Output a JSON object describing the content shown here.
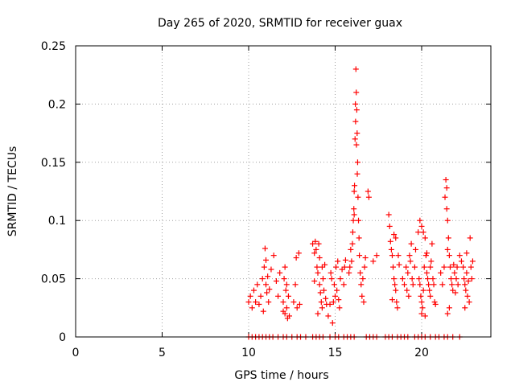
{
  "chart_data": {
    "type": "scatter",
    "title": "Day 265 of 2020, SRMTID for receiver guax",
    "xlabel": "GPS time / hours",
    "ylabel": "SRMTID / TECUs",
    "xlim": [
      0,
      24.0
    ],
    "ylim": [
      0,
      0.25
    ],
    "x_ticks": [
      0,
      5,
      10,
      15,
      20
    ],
    "y_ticks": [
      0,
      0.05,
      0.1,
      0.15,
      0.2,
      0.25
    ],
    "x_tick_labels": [
      "0",
      "5",
      "10",
      "15",
      "20"
    ],
    "y_tick_labels": [
      "0",
      "0.05",
      "0.1",
      "0.15",
      "0.2",
      "0.25"
    ],
    "grid": true,
    "marker": "+",
    "series": [
      {
        "name": "SRMTID",
        "color": "#ff0000",
        "points": [
          [
            10.0,
            0.03
          ],
          [
            10.1,
            0.035
          ],
          [
            10.2,
            0.025
          ],
          [
            10.3,
            0.04
          ],
          [
            10.4,
            0.03
          ],
          [
            10.5,
            0.045
          ],
          [
            10.6,
            0.028
          ],
          [
            10.7,
            0.035
          ],
          [
            10.8,
            0.05
          ],
          [
            10.9,
            0.06
          ],
          [
            10.95,
            0.076
          ],
          [
            11.0,
            0.045
          ],
          [
            11.05,
            0.038
          ],
          [
            11.1,
            0.052
          ],
          [
            11.15,
            0.03
          ],
          [
            11.0,
            0.066
          ],
          [
            10.85,
            0.022
          ],
          [
            11.2,
            0.041
          ],
          [
            11.3,
            0.058
          ],
          [
            11.45,
            0.07
          ],
          [
            11.6,
            0.048
          ],
          [
            11.7,
            0.035
          ],
          [
            11.8,
            0.055
          ],
          [
            12.0,
            0.03
          ],
          [
            12.05,
            0.05
          ],
          [
            12.1,
            0.02
          ],
          [
            12.15,
            0.04
          ],
          [
            12.2,
            0.025
          ],
          [
            12.25,
            0.016
          ],
          [
            12.3,
            0.035
          ],
          [
            12.35,
            0.018
          ],
          [
            12.1,
            0.06
          ],
          [
            12.2,
            0.045
          ],
          [
            12.0,
            0.022
          ],
          [
            12.6,
            0.03
          ],
          [
            12.7,
            0.045
          ],
          [
            12.75,
            0.068
          ],
          [
            12.8,
            0.025
          ],
          [
            12.9,
            0.072
          ],
          [
            12.95,
            0.028
          ],
          [
            13.7,
            0.08
          ],
          [
            13.8,
            0.072
          ],
          [
            13.85,
            0.082
          ],
          [
            13.9,
            0.075
          ],
          [
            13.95,
            0.06
          ],
          [
            14.0,
            0.055
          ],
          [
            14.05,
            0.08
          ],
          [
            14.1,
            0.045
          ],
          [
            14.15,
            0.038
          ],
          [
            14.2,
            0.03
          ],
          [
            14.25,
            0.025
          ],
          [
            14.3,
            0.05
          ],
          [
            14.35,
            0.04
          ],
          [
            14.4,
            0.062
          ],
          [
            14.45,
            0.033
          ],
          [
            14.5,
            0.028
          ],
          [
            14.0,
            0.02
          ],
          [
            14.1,
            0.068
          ],
          [
            14.25,
            0.06
          ],
          [
            13.8,
            0.048
          ],
          [
            14.6,
            0.018
          ],
          [
            14.7,
            0.028
          ],
          [
            14.75,
            0.055
          ],
          [
            14.8,
            0.05
          ],
          [
            14.85,
            0.012
          ],
          [
            14.9,
            0.03
          ],
          [
            14.95,
            0.045
          ],
          [
            15.0,
            0.035
          ],
          [
            15.05,
            0.06
          ],
          [
            15.1,
            0.04
          ],
          [
            15.15,
            0.065
          ],
          [
            15.2,
            0.032
          ],
          [
            15.25,
            0.025
          ],
          [
            15.3,
            0.05
          ],
          [
            15.4,
            0.058
          ],
          [
            15.5,
            0.045
          ],
          [
            15.55,
            0.06
          ],
          [
            15.6,
            0.066
          ],
          [
            15.8,
            0.055
          ],
          [
            15.85,
            0.06
          ],
          [
            15.9,
            0.075
          ],
          [
            15.95,
            0.065
          ],
          [
            16.0,
            0.08
          ],
          [
            16.02,
            0.09
          ],
          [
            16.05,
            0.1
          ],
          [
            16.08,
            0.11
          ],
          [
            16.1,
            0.105
          ],
          [
            16.12,
            0.13
          ],
          [
            16.15,
            0.17
          ],
          [
            16.17,
            0.2
          ],
          [
            16.2,
            0.23
          ],
          [
            16.22,
            0.21
          ],
          [
            16.25,
            0.195
          ],
          [
            16.27,
            0.175
          ],
          [
            16.3,
            0.15
          ],
          [
            16.32,
            0.12
          ],
          [
            16.35,
            0.1
          ],
          [
            16.38,
            0.085
          ],
          [
            16.4,
            0.07
          ],
          [
            16.45,
            0.055
          ],
          [
            16.5,
            0.045
          ],
          [
            16.55,
            0.035
          ],
          [
            16.6,
            0.05
          ],
          [
            16.65,
            0.03
          ],
          [
            16.7,
            0.06
          ],
          [
            16.75,
            0.068
          ],
          [
            16.18,
            0.185
          ],
          [
            16.23,
            0.165
          ],
          [
            16.28,
            0.14
          ],
          [
            16.1,
            0.125
          ],
          [
            16.9,
            0.125
          ],
          [
            16.95,
            0.12
          ],
          [
            17.2,
            0.065
          ],
          [
            17.4,
            0.07
          ],
          [
            18.1,
            0.105
          ],
          [
            18.15,
            0.095
          ],
          [
            18.2,
            0.082
          ],
          [
            18.25,
            0.075
          ],
          [
            18.3,
            0.07
          ],
          [
            18.35,
            0.06
          ],
          [
            18.4,
            0.05
          ],
          [
            18.45,
            0.045
          ],
          [
            18.5,
            0.04
          ],
          [
            18.55,
            0.03
          ],
          [
            18.6,
            0.025
          ],
          [
            18.65,
            0.07
          ],
          [
            18.7,
            0.062
          ],
          [
            18.3,
            0.032
          ],
          [
            18.4,
            0.088
          ],
          [
            18.5,
            0.085
          ],
          [
            18.9,
            0.05
          ],
          [
            19.0,
            0.045
          ],
          [
            19.1,
            0.06
          ],
          [
            19.15,
            0.04
          ],
          [
            19.2,
            0.055
          ],
          [
            19.25,
            0.035
          ],
          [
            19.3,
            0.07
          ],
          [
            19.35,
            0.065
          ],
          [
            19.4,
            0.08
          ],
          [
            19.45,
            0.05
          ],
          [
            19.5,
            0.045
          ],
          [
            19.6,
            0.06
          ],
          [
            19.65,
            0.075
          ],
          [
            19.8,
            0.09
          ],
          [
            19.85,
            0.05
          ],
          [
            19.9,
            0.045
          ],
          [
            19.95,
            0.035
          ],
          [
            20.0,
            0.03
          ],
          [
            20.05,
            0.025
          ],
          [
            20.1,
            0.04
          ],
          [
            20.15,
            0.06
          ],
          [
            20.2,
            0.085
          ],
          [
            20.25,
            0.07
          ],
          [
            20.3,
            0.055
          ],
          [
            20.35,
            0.05
          ],
          [
            20.4,
            0.045
          ],
          [
            20.45,
            0.04
          ],
          [
            20.5,
            0.035
          ],
          [
            20.55,
            0.065
          ],
          [
            20.6,
            0.08
          ],
          [
            20.65,
            0.05
          ],
          [
            20.7,
            0.045
          ],
          [
            20.75,
            0.03
          ],
          [
            20.8,
            0.028
          ],
          [
            19.9,
            0.1
          ],
          [
            20.0,
            0.095
          ],
          [
            20.1,
            0.09
          ],
          [
            20.3,
            0.072
          ],
          [
            20.5,
            0.06
          ],
          [
            20.0,
            0.02
          ],
          [
            20.2,
            0.018
          ],
          [
            21.1,
            0.055
          ],
          [
            21.2,
            0.045
          ],
          [
            21.3,
            0.06
          ],
          [
            21.35,
            0.12
          ],
          [
            21.4,
            0.135
          ],
          [
            21.45,
            0.11
          ],
          [
            21.5,
            0.1
          ],
          [
            21.55,
            0.085
          ],
          [
            21.6,
            0.07
          ],
          [
            21.65,
            0.06
          ],
          [
            21.7,
            0.05
          ],
          [
            21.75,
            0.045
          ],
          [
            21.8,
            0.04
          ],
          [
            21.85,
            0.062
          ],
          [
            21.9,
            0.055
          ],
          [
            21.95,
            0.038
          ],
          [
            22.0,
            0.05
          ],
          [
            22.05,
            0.06
          ],
          [
            22.1,
            0.045
          ],
          [
            21.5,
            0.02
          ],
          [
            21.6,
            0.025
          ],
          [
            21.45,
            0.128
          ],
          [
            21.5,
            0.075
          ],
          [
            22.2,
            0.07
          ],
          [
            22.3,
            0.065
          ],
          [
            22.4,
            0.06
          ],
          [
            22.45,
            0.05
          ],
          [
            22.5,
            0.045
          ],
          [
            22.55,
            0.04
          ],
          [
            22.6,
            0.055
          ],
          [
            22.65,
            0.035
          ],
          [
            22.7,
            0.048
          ],
          [
            22.75,
            0.03
          ],
          [
            22.8,
            0.085
          ],
          [
            22.85,
            0.06
          ],
          [
            22.9,
            0.05
          ],
          [
            22.95,
            0.065
          ],
          [
            22.5,
            0.025
          ],
          [
            22.6,
            0.072
          ],
          [
            10.0,
            0.0
          ],
          [
            10.2,
            0.0
          ],
          [
            10.4,
            0.0
          ],
          [
            10.6,
            0.0
          ],
          [
            10.8,
            0.0
          ],
          [
            11.0,
            0.0
          ],
          [
            11.2,
            0.0
          ],
          [
            11.4,
            0.0
          ],
          [
            11.7,
            0.0
          ],
          [
            12.0,
            0.0
          ],
          [
            12.2,
            0.0
          ],
          [
            12.5,
            0.0
          ],
          [
            12.8,
            0.0
          ],
          [
            13.0,
            0.0
          ],
          [
            13.3,
            0.0
          ],
          [
            13.7,
            0.0
          ],
          [
            13.9,
            0.0
          ],
          [
            14.1,
            0.0
          ],
          [
            14.3,
            0.0
          ],
          [
            14.7,
            0.0
          ],
          [
            15.0,
            0.0
          ],
          [
            15.2,
            0.0
          ],
          [
            15.5,
            0.0
          ],
          [
            15.7,
            0.0
          ],
          [
            15.9,
            0.0
          ],
          [
            16.1,
            0.0
          ],
          [
            16.8,
            0.0
          ],
          [
            17.0,
            0.0
          ],
          [
            17.2,
            0.0
          ],
          [
            17.4,
            0.0
          ],
          [
            17.9,
            0.0
          ],
          [
            18.1,
            0.0
          ],
          [
            18.3,
            0.0
          ],
          [
            18.6,
            0.0
          ],
          [
            18.8,
            0.0
          ],
          [
            19.0,
            0.0
          ],
          [
            19.2,
            0.0
          ],
          [
            19.6,
            0.0
          ],
          [
            19.8,
            0.0
          ],
          [
            20.0,
            0.0
          ],
          [
            20.2,
            0.0
          ],
          [
            20.5,
            0.0
          ],
          [
            20.8,
            0.0
          ],
          [
            21.0,
            0.0
          ],
          [
            21.3,
            0.0
          ],
          [
            21.5,
            0.0
          ],
          [
            21.8,
            0.0
          ],
          [
            22.2,
            0.0
          ]
        ]
      }
    ]
  }
}
